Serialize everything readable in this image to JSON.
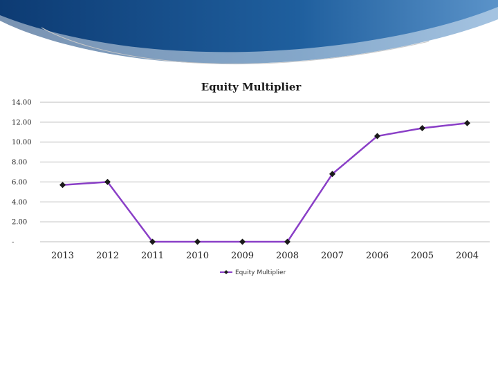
{
  "colors": {
    "banner_dark": "#0d3b73",
    "banner_mid": "#1f5f9e",
    "banner_light": "#5b93c9",
    "series_line": "#8a3fc7",
    "marker": "#1a1a1a",
    "grid": "#bdbdbd"
  },
  "chart_data": {
    "type": "line",
    "title": "Equity Multiplier",
    "categories": [
      "2013",
      "2012",
      "2011",
      "2010",
      "2009",
      "2008",
      "2007",
      "2006",
      "2005",
      "2004"
    ],
    "series": [
      {
        "name": "Equity Multiplier",
        "values": [
          5.7,
          6.0,
          0,
          0,
          0,
          0,
          6.8,
          10.6,
          11.4,
          11.9
        ]
      }
    ],
    "y_tick_labels": [
      "-",
      "2.00",
      "4.00",
      "6.00",
      "8.00",
      "10.00",
      "12.00",
      "14.00"
    ],
    "ylim": [
      0,
      14
    ],
    "grid": true,
    "legend": "bottom",
    "marker": "diamond"
  }
}
